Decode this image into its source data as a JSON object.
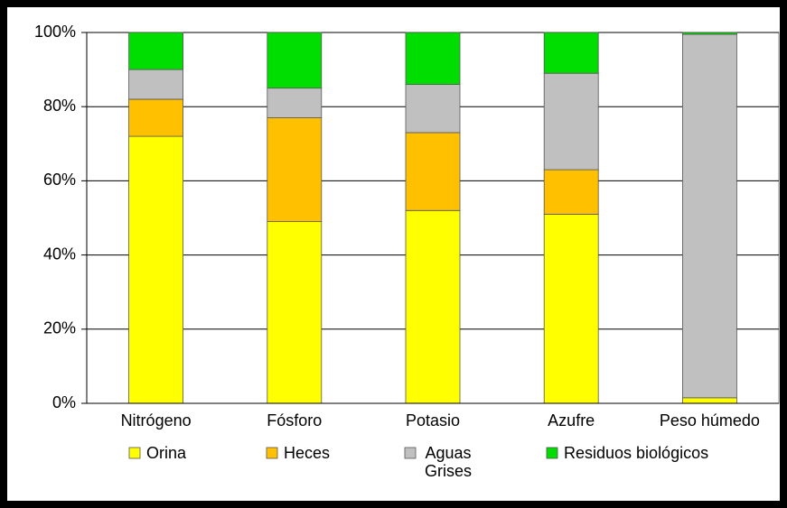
{
  "chart_data": {
    "type": "stacked_bar",
    "categories": [
      "Nitrógeno",
      "Fósforo",
      "Potasio",
      "Azufre",
      "Peso húmedo"
    ],
    "series": [
      {
        "name": "Orina",
        "color": "#ffff00",
        "values": [
          72,
          49,
          52,
          51,
          1.5
        ]
      },
      {
        "name": "Heces",
        "color": "#ffc000",
        "values": [
          10,
          28,
          21,
          12,
          0
        ]
      },
      {
        "name": "Aguas Grises",
        "color": "#c0c0c0",
        "values": [
          8,
          8,
          13,
          26,
          98
        ]
      },
      {
        "name": "Residuos biológicos",
        "color": "#00dd00",
        "values": [
          10,
          15,
          14,
          11,
          0.5
        ]
      }
    ],
    "ylim": [
      0,
      100
    ],
    "yticks": [
      {
        "value": 0,
        "label": "0%"
      },
      {
        "value": 20,
        "label": "20%"
      },
      {
        "value": 40,
        "label": "40%"
      },
      {
        "value": 60,
        "label": "60%"
      },
      {
        "value": 80,
        "label": "80%"
      },
      {
        "value": 100,
        "label": "100%"
      }
    ],
    "grid": true,
    "legend": "bottom"
  }
}
